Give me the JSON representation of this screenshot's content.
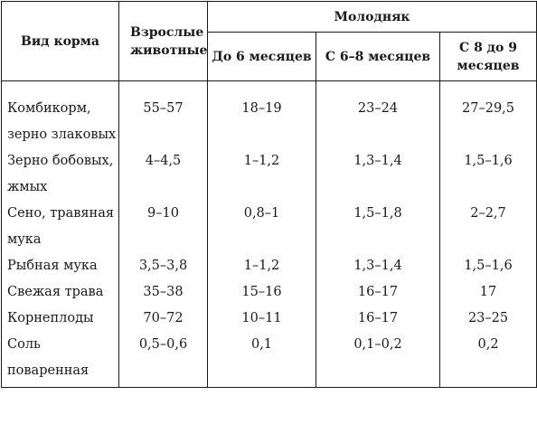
{
  "header": {
    "feed_type": "Вид корма",
    "adult": "Взрослые животные",
    "young": "Молодняк",
    "young_groups": [
      "До 6 месяцев",
      "С 6–8 месяцев",
      "С 8 до 9 месяцев"
    ]
  },
  "rows": [
    {
      "name": "Комбикорм, зерно злаковых",
      "adult": "55–57",
      "m6": "18–19",
      "m6_8": "23–24",
      "m8_9": "27–29,5"
    },
    {
      "name": "Зерно бобовых, жмых",
      "adult": "4–4,5",
      "m6": "1–1,2",
      "m6_8": "1,3–1,4",
      "m8_9": "1,5–1,6"
    },
    {
      "name": "Сено, травяная мука",
      "adult": "9–10",
      "m6": "0,8–1",
      "m6_8": "1,5–1,8",
      "m8_9": "2–2,7"
    },
    {
      "name": "Рыбная мука",
      "adult": "3,5–3,8",
      "m6": "1–1,2",
      "m6_8": "1,3–1,4",
      "m8_9": "1,5–1,6"
    },
    {
      "name": "Свежая трава",
      "adult": "35–38",
      "m6": "15–16",
      "m6_8": "16–17",
      "m8_9": "17"
    },
    {
      "name": "Корнеплоды",
      "adult": "70–72",
      "m6": "10–11",
      "m6_8": "16–17",
      "m8_9": "23–25"
    },
    {
      "name": "Соль поваренная",
      "adult": "0,5–0,6",
      "m6": "0,1",
      "m6_8": "0,1–0,2",
      "m8_9": "0,2"
    }
  ]
}
